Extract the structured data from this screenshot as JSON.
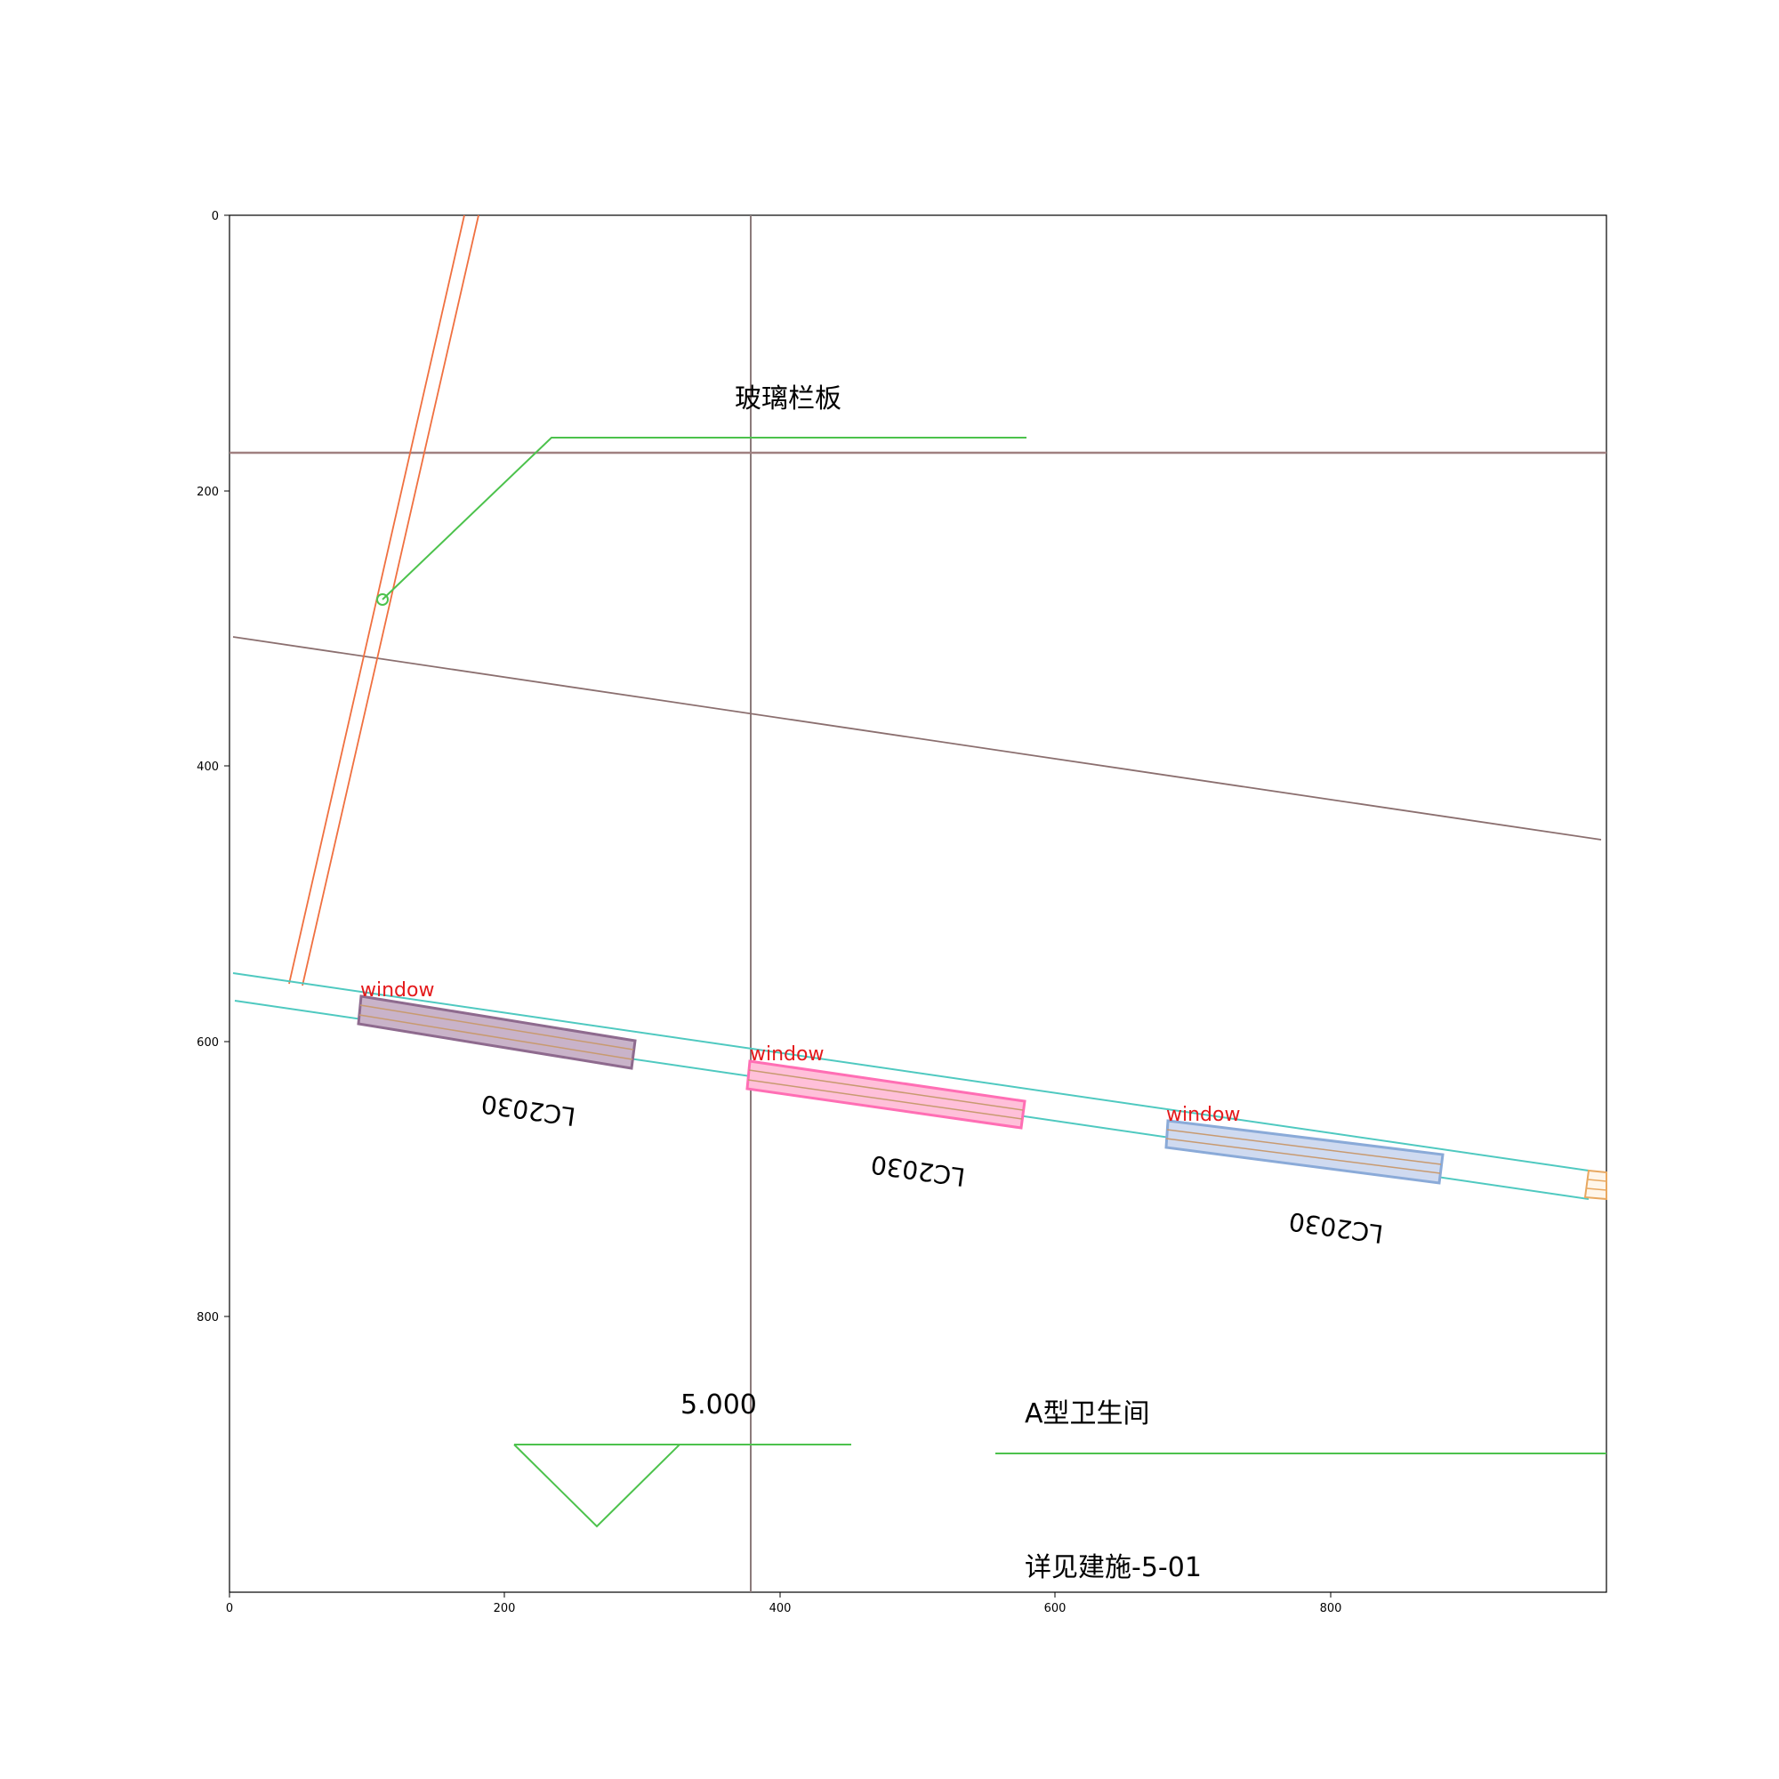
{
  "axes": {
    "x_ticks": [
      "0",
      "200",
      "400",
      "600",
      "800"
    ],
    "y_ticks": [
      "0",
      "200",
      "400",
      "600",
      "800"
    ],
    "xlim": [
      0,
      1000
    ],
    "ylim": [
      1000,
      0
    ]
  },
  "annotations": {
    "glass_railing": "玻璃栏板",
    "elevation": "5.000",
    "bathroom_type": "A型卫生间",
    "reference": "详见建施-5-01"
  },
  "windows": [
    {
      "label": "window",
      "code": "LC2030",
      "color": "#8e6a8e",
      "fill": "#c9b3c9"
    },
    {
      "label": "window",
      "code": "LC2030",
      "color": "#ff6eb4",
      "fill": "#ffc0d9"
    },
    {
      "label": "window",
      "code": "LC2030",
      "color": "#8aaad8",
      "fill": "#cfdaf0"
    }
  ],
  "colors": {
    "wall_line": "#4fc9c0",
    "leader_line": "#4cc24c",
    "diagonal_wall": "#f07040",
    "axis_line": "#8b6f6f"
  }
}
